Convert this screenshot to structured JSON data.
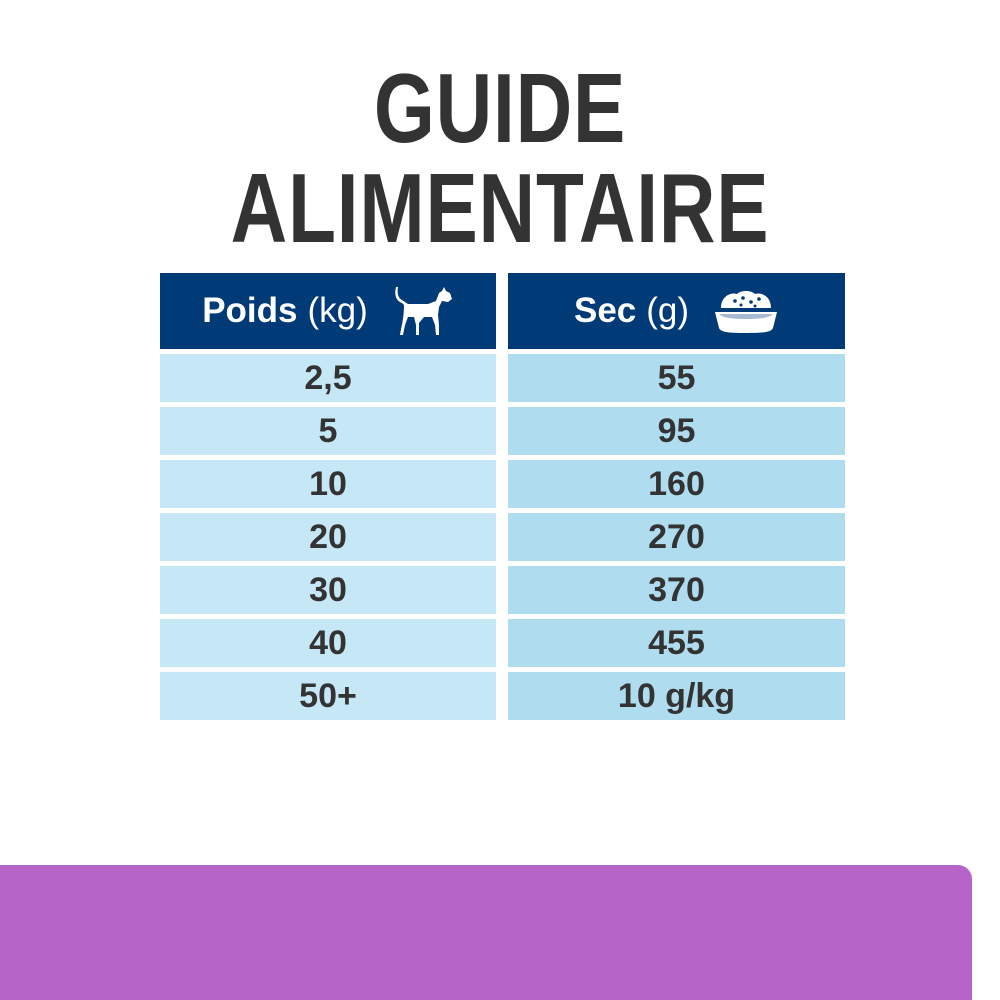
{
  "title": "GUIDE ALIMENTAIRE",
  "table": {
    "headers": [
      {
        "label": "Poids",
        "unit": "(kg)",
        "icon": "dog-icon"
      },
      {
        "label": "Sec",
        "unit": "(g)",
        "icon": "food-bowl-icon"
      }
    ],
    "rows": [
      {
        "weight": "2,5",
        "dry": "55"
      },
      {
        "weight": "5",
        "dry": "95"
      },
      {
        "weight": "10",
        "dry": "160"
      },
      {
        "weight": "20",
        "dry": "270"
      },
      {
        "weight": "30",
        "dry": "370"
      },
      {
        "weight": "40",
        "dry": "455"
      },
      {
        "weight": "50+",
        "dry": "10 g/kg"
      }
    ]
  },
  "colors": {
    "header": "#003a77",
    "cell_left": "#c6e7f5",
    "cell_right": "#afdcef",
    "band": "#b764c9",
    "text": "#333333"
  }
}
